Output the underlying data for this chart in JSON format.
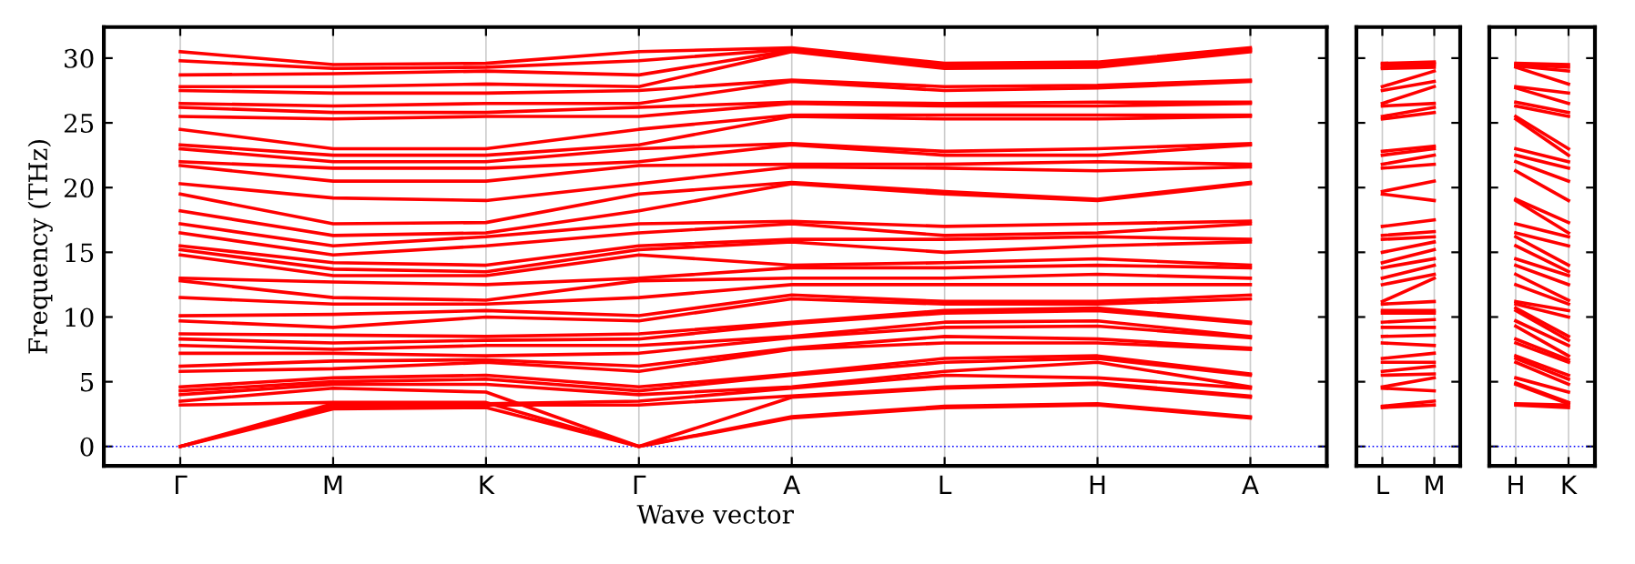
{
  "chart_data": [
    {
      "type": "line",
      "xlabel": "Wave vector",
      "ylabel": "Frequency (THz)",
      "categories": [
        "Γ",
        "M",
        "K",
        "Γ",
        "A",
        "L",
        "H",
        "A"
      ],
      "ylim": [
        -1.5,
        32.4
      ],
      "yticks": [
        0,
        5,
        10,
        15,
        20,
        25,
        30
      ],
      "grid": "x",
      "ref_lines": [
        {
          "axis": "y",
          "value": 0,
          "color": "#0000ff",
          "line_style": "dotted"
        }
      ],
      "series": [
        {
          "color": "#ff0000",
          "values": [
            0,
            2.9,
            3.0,
            0,
            2.2,
            3.0,
            3.2,
            2.2
          ]
        },
        {
          "color": "#ff0000",
          "values": [
            0,
            3.1,
            3.2,
            3.2,
            3.9,
            4.6,
            4.9,
            3.9
          ]
        },
        {
          "color": "#ff0000",
          "values": [
            0,
            3.3,
            3.3,
            3.5,
            4.5,
            5.5,
            5.3,
            4.5
          ]
        },
        {
          "color": "#ff0000",
          "values": [
            3.2,
            3.4,
            3.4,
            0,
            2.3,
            3.1,
            3.3,
            2.3
          ]
        },
        {
          "color": "#ff0000",
          "values": [
            3.5,
            4.5,
            4.2,
            0,
            3.8,
            4.5,
            4.8,
            3.8
          ]
        },
        {
          "color": "#ff0000",
          "values": [
            4.0,
            4.8,
            4.8,
            4.0,
            4.6,
            5.8,
            6.5,
            4.6
          ]
        },
        {
          "color": "#ff0000",
          "values": [
            4.3,
            5.0,
            5.2,
            4.3,
            5.5,
            6.5,
            6.8,
            5.5
          ]
        },
        {
          "color": "#ff0000",
          "values": [
            4.6,
            5.3,
            5.5,
            4.6,
            5.6,
            6.8,
            7.0,
            5.6
          ]
        },
        {
          "color": "#ff0000",
          "values": [
            5.8,
            6.0,
            6.5,
            5.8,
            7.5,
            8.0,
            8.0,
            7.5
          ]
        },
        {
          "color": "#ff0000",
          "values": [
            6.2,
            6.6,
            6.7,
            6.2,
            7.6,
            8.5,
            8.3,
            7.6
          ]
        },
        {
          "color": "#ff0000",
          "values": [
            7.2,
            7.2,
            7.0,
            7.2,
            8.4,
            9.2,
            9.3,
            8.4
          ]
        },
        {
          "color": "#ff0000",
          "values": [
            7.8,
            7.5,
            7.8,
            7.8,
            8.5,
            9.6,
            9.7,
            8.5
          ]
        },
        {
          "color": "#ff0000",
          "values": [
            8.3,
            8.0,
            8.2,
            8.3,
            9.5,
            10.3,
            10.5,
            9.5
          ]
        },
        {
          "color": "#ff0000",
          "values": [
            8.7,
            8.6,
            8.5,
            8.7,
            9.6,
            10.5,
            10.7,
            9.6
          ]
        },
        {
          "color": "#ff0000",
          "values": [
            9.7,
            9.2,
            10.0,
            9.7,
            11.4,
            11.0,
            11.0,
            11.4
          ]
        },
        {
          "color": "#ff0000",
          "values": [
            10.1,
            10.2,
            10.5,
            10.1,
            11.7,
            11.2,
            11.2,
            11.7
          ]
        },
        {
          "color": "#ff0000",
          "values": [
            11.5,
            11.0,
            11.0,
            11.5,
            12.5,
            12.5,
            12.5,
            12.5
          ]
        },
        {
          "color": "#ff0000",
          "values": [
            12.8,
            11.5,
            11.3,
            12.8,
            13.0,
            13.0,
            13.3,
            13.0
          ]
        },
        {
          "color": "#ff0000",
          "values": [
            13.0,
            12.7,
            12.5,
            13.0,
            13.8,
            13.8,
            14.0,
            13.8
          ]
        },
        {
          "color": "#ff0000",
          "values": [
            14.8,
            13.2,
            13.2,
            14.8,
            14.0,
            14.2,
            14.5,
            14.0
          ]
        },
        {
          "color": "#ff0000",
          "values": [
            15.2,
            13.7,
            13.5,
            15.2,
            15.8,
            15.0,
            15.5,
            15.8
          ]
        },
        {
          "color": "#ff0000",
          "values": [
            15.5,
            14.2,
            14.0,
            15.5,
            16.0,
            16.0,
            16.2,
            16.0
          ]
        },
        {
          "color": "#ff0000",
          "values": [
            16.5,
            14.8,
            15.5,
            16.5,
            17.2,
            16.3,
            16.5,
            17.2
          ]
        },
        {
          "color": "#ff0000",
          "values": [
            17.2,
            15.5,
            16.2,
            17.2,
            17.4,
            17.0,
            17.2,
            17.4
          ]
        },
        {
          "color": "#ff0000",
          "values": [
            18.2,
            16.3,
            16.5,
            18.2,
            20.3,
            19.5,
            19.0,
            20.3
          ]
        },
        {
          "color": "#ff0000",
          "values": [
            19.5,
            17.2,
            17.3,
            19.5,
            20.4,
            19.7,
            19.1,
            20.4
          ]
        },
        {
          "color": "#ff0000",
          "values": [
            20.3,
            19.2,
            19.0,
            20.3,
            21.6,
            21.5,
            21.3,
            21.6
          ]
        },
        {
          "color": "#ff0000",
          "values": [
            21.7,
            20.5,
            20.5,
            21.7,
            21.8,
            21.8,
            22.0,
            21.8
          ]
        },
        {
          "color": "#ff0000",
          "values": [
            22.0,
            21.5,
            21.5,
            22.0,
            23.3,
            22.5,
            22.5,
            23.3
          ]
        },
        {
          "color": "#ff0000",
          "values": [
            23.0,
            22.0,
            22.0,
            23.0,
            23.4,
            22.8,
            23.0,
            23.4
          ]
        },
        {
          "color": "#ff0000",
          "values": [
            23.3,
            22.5,
            22.5,
            23.3,
            25.5,
            25.3,
            25.3,
            25.5
          ]
        },
        {
          "color": "#ff0000",
          "values": [
            24.5,
            23.0,
            23.0,
            24.5,
            25.6,
            25.6,
            25.6,
            25.6
          ]
        },
        {
          "color": "#ff0000",
          "values": [
            25.5,
            25.3,
            25.5,
            25.5,
            26.5,
            26.3,
            26.3,
            26.5
          ]
        },
        {
          "color": "#ff0000",
          "values": [
            26.2,
            25.8,
            25.8,
            26.2,
            26.6,
            26.5,
            26.6,
            26.6
          ]
        },
        {
          "color": "#ff0000",
          "values": [
            26.5,
            26.3,
            26.5,
            26.5,
            28.2,
            27.5,
            27.7,
            28.2
          ]
        },
        {
          "color": "#ff0000",
          "values": [
            27.5,
            27.3,
            27.3,
            27.5,
            28.3,
            27.8,
            27.9,
            28.3
          ]
        },
        {
          "color": "#ff0000",
          "values": [
            27.8,
            27.8,
            28.0,
            27.8,
            30.5,
            29.2,
            29.3,
            30.5
          ]
        },
        {
          "color": "#ff0000",
          "values": [
            28.7,
            28.8,
            29.0,
            28.7,
            30.6,
            29.3,
            29.4,
            30.6
          ]
        },
        {
          "color": "#ff0000",
          "values": [
            29.8,
            29.2,
            29.3,
            29.8,
            30.7,
            29.5,
            29.5,
            30.7
          ]
        },
        {
          "color": "#ff0000",
          "values": [
            30.5,
            29.5,
            29.6,
            30.5,
            30.8,
            29.6,
            29.7,
            30.8
          ]
        }
      ]
    },
    {
      "type": "line",
      "categories": [
        "L",
        "M"
      ],
      "ylim": [
        -1.5,
        32.4
      ],
      "yticks": [
        0,
        5,
        10,
        15,
        20,
        25,
        30
      ],
      "tick_labels": "x",
      "grid": "x",
      "ref_lines": [
        {
          "axis": "y",
          "value": 0,
          "color": "#0000ff",
          "line_style": "dotted"
        }
      ],
      "series": [
        {
          "color": "#ff0000",
          "values": [
            3.0,
            3.2
          ]
        },
        {
          "color": "#ff0000",
          "values": [
            3.1,
            3.5
          ]
        },
        {
          "color": "#ff0000",
          "values": [
            4.5,
            4.3
          ]
        },
        {
          "color": "#ff0000",
          "values": [
            4.6,
            5.3
          ]
        },
        {
          "color": "#ff0000",
          "values": [
            5.5,
            5.6
          ]
        },
        {
          "color": "#ff0000",
          "values": [
            5.8,
            6.2
          ]
        },
        {
          "color": "#ff0000",
          "values": [
            6.5,
            6.5
          ]
        },
        {
          "color": "#ff0000",
          "values": [
            6.8,
            7.2
          ]
        },
        {
          "color": "#ff0000",
          "values": [
            8.0,
            7.8
          ]
        },
        {
          "color": "#ff0000",
          "values": [
            8.5,
            8.6
          ]
        },
        {
          "color": "#ff0000",
          "values": [
            9.2,
            9.2
          ]
        },
        {
          "color": "#ff0000",
          "values": [
            9.6,
            9.8
          ]
        },
        {
          "color": "#ff0000",
          "values": [
            10.3,
            10.3
          ]
        },
        {
          "color": "#ff0000",
          "values": [
            10.5,
            10.5
          ]
        },
        {
          "color": "#ff0000",
          "values": [
            11.0,
            11.2
          ]
        },
        {
          "color": "#ff0000",
          "values": [
            11.2,
            13.0
          ]
        },
        {
          "color": "#ff0000",
          "values": [
            12.5,
            13.3
          ]
        },
        {
          "color": "#ff0000",
          "values": [
            13.0,
            14.0
          ]
        },
        {
          "color": "#ff0000",
          "values": [
            13.8,
            14.5
          ]
        },
        {
          "color": "#ff0000",
          "values": [
            14.2,
            15.2
          ]
        },
        {
          "color": "#ff0000",
          "values": [
            15.0,
            15.8
          ]
        },
        {
          "color": "#ff0000",
          "values": [
            16.0,
            16.2
          ]
        },
        {
          "color": "#ff0000",
          "values": [
            16.3,
            16.6
          ]
        },
        {
          "color": "#ff0000",
          "values": [
            17.0,
            17.5
          ]
        },
        {
          "color": "#ff0000",
          "values": [
            19.5,
            19.0
          ]
        },
        {
          "color": "#ff0000",
          "values": [
            19.7,
            20.5
          ]
        },
        {
          "color": "#ff0000",
          "values": [
            21.5,
            21.8
          ]
        },
        {
          "color": "#ff0000",
          "values": [
            21.8,
            22.5
          ]
        },
        {
          "color": "#ff0000",
          "values": [
            22.5,
            23.0
          ]
        },
        {
          "color": "#ff0000",
          "values": [
            22.8,
            23.2
          ]
        },
        {
          "color": "#ff0000",
          "values": [
            25.3,
            25.8
          ]
        },
        {
          "color": "#ff0000",
          "values": [
            25.5,
            26.2
          ]
        },
        {
          "color": "#ff0000",
          "values": [
            26.3,
            26.5
          ]
        },
        {
          "color": "#ff0000",
          "values": [
            26.5,
            27.8
          ]
        },
        {
          "color": "#ff0000",
          "values": [
            27.5,
            28.2
          ]
        },
        {
          "color": "#ff0000",
          "values": [
            27.8,
            29.0
          ]
        },
        {
          "color": "#ff0000",
          "values": [
            29.2,
            29.3
          ]
        },
        {
          "color": "#ff0000",
          "values": [
            29.3,
            29.5
          ]
        },
        {
          "color": "#ff0000",
          "values": [
            29.5,
            29.6
          ]
        },
        {
          "color": "#ff0000",
          "values": [
            29.6,
            29.7
          ]
        }
      ]
    },
    {
      "type": "line",
      "categories": [
        "H",
        "K"
      ],
      "ylim": [
        -1.5,
        32.4
      ],
      "yticks": [
        0,
        5,
        10,
        15,
        20,
        25,
        30
      ],
      "tick_labels": "x",
      "grid": "x",
      "ref_lines": [
        {
          "axis": "y",
          "value": 0,
          "color": "#0000ff",
          "line_style": "dotted"
        }
      ],
      "series": [
        {
          "color": "#ff0000",
          "values": [
            3.2,
            3.0
          ]
        },
        {
          "color": "#ff0000",
          "values": [
            3.3,
            3.2
          ]
        },
        {
          "color": "#ff0000",
          "values": [
            4.8,
            3.3
          ]
        },
        {
          "color": "#ff0000",
          "values": [
            4.9,
            3.4
          ]
        },
        {
          "color": "#ff0000",
          "values": [
            5.3,
            4.2
          ]
        },
        {
          "color": "#ff0000",
          "values": [
            6.5,
            4.8
          ]
        },
        {
          "color": "#ff0000",
          "values": [
            6.8,
            5.2
          ]
        },
        {
          "color": "#ff0000",
          "values": [
            7.0,
            5.5
          ]
        },
        {
          "color": "#ff0000",
          "values": [
            8.0,
            6.5
          ]
        },
        {
          "color": "#ff0000",
          "values": [
            8.3,
            6.7
          ]
        },
        {
          "color": "#ff0000",
          "values": [
            9.3,
            7.0
          ]
        },
        {
          "color": "#ff0000",
          "values": [
            9.7,
            7.8
          ]
        },
        {
          "color": "#ff0000",
          "values": [
            10.5,
            8.2
          ]
        },
        {
          "color": "#ff0000",
          "values": [
            10.7,
            8.5
          ]
        },
        {
          "color": "#ff0000",
          "values": [
            11.0,
            10.0
          ]
        },
        {
          "color": "#ff0000",
          "values": [
            11.2,
            10.5
          ]
        },
        {
          "color": "#ff0000",
          "values": [
            12.5,
            11.0
          ]
        },
        {
          "color": "#ff0000",
          "values": [
            13.3,
            11.3
          ]
        },
        {
          "color": "#ff0000",
          "values": [
            14.0,
            12.5
          ]
        },
        {
          "color": "#ff0000",
          "values": [
            14.5,
            13.2
          ]
        },
        {
          "color": "#ff0000",
          "values": [
            15.5,
            13.5
          ]
        },
        {
          "color": "#ff0000",
          "values": [
            16.2,
            14.0
          ]
        },
        {
          "color": "#ff0000",
          "values": [
            16.5,
            15.5
          ]
        },
        {
          "color": "#ff0000",
          "values": [
            17.2,
            16.2
          ]
        },
        {
          "color": "#ff0000",
          "values": [
            19.0,
            16.5
          ]
        },
        {
          "color": "#ff0000",
          "values": [
            19.1,
            17.3
          ]
        },
        {
          "color": "#ff0000",
          "values": [
            21.3,
            19.0
          ]
        },
        {
          "color": "#ff0000",
          "values": [
            22.0,
            20.5
          ]
        },
        {
          "color": "#ff0000",
          "values": [
            22.5,
            21.5
          ]
        },
        {
          "color": "#ff0000",
          "values": [
            23.0,
            22.0
          ]
        },
        {
          "color": "#ff0000",
          "values": [
            25.3,
            22.5
          ]
        },
        {
          "color": "#ff0000",
          "values": [
            25.5,
            23.0
          ]
        },
        {
          "color": "#ff0000",
          "values": [
            26.3,
            25.5
          ]
        },
        {
          "color": "#ff0000",
          "values": [
            26.6,
            25.8
          ]
        },
        {
          "color": "#ff0000",
          "values": [
            27.7,
            26.5
          ]
        },
        {
          "color": "#ff0000",
          "values": [
            27.8,
            27.3
          ]
        },
        {
          "color": "#ff0000",
          "values": [
            29.3,
            28.0
          ]
        },
        {
          "color": "#ff0000",
          "values": [
            29.4,
            29.0
          ]
        },
        {
          "color": "#ff0000",
          "values": [
            29.5,
            29.3
          ]
        },
        {
          "color": "#ff0000",
          "values": [
            29.6,
            29.5
          ]
        }
      ]
    }
  ]
}
